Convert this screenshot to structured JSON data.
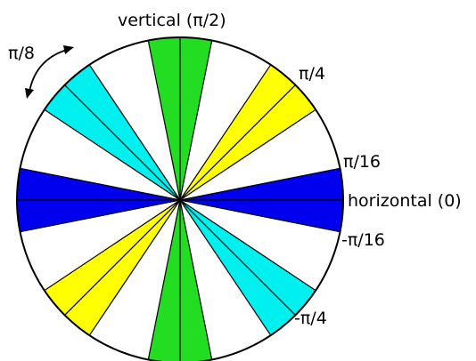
{
  "labels": {
    "vertical": "vertical (π/2)",
    "pi_over_4": "π/4",
    "pi_over_16": "π/16",
    "horizontal": "horizontal (0)",
    "neg_pi_over_16": "-π/16",
    "neg_pi_over_4": "-π/4",
    "pi_over_8": "π/8"
  },
  "bands": [
    {
      "name": "horizontal-band",
      "center_angle_rad": "0",
      "half_width_rad": "π/16",
      "color": "#0000ee"
    },
    {
      "name": "vertical-band",
      "center_angle_rad": "π/2",
      "half_width_rad": "π/16",
      "color": "#22dd22"
    },
    {
      "name": "diagonal-pi4-band",
      "center_angle_rad": "π/4",
      "half_width_rad": "π/16",
      "color": "#ffff00"
    },
    {
      "name": "diagonal-neg-pi4-band",
      "center_angle_rad": "-π/4",
      "half_width_rad": "π/16",
      "color": "#00f0f0"
    }
  ],
  "colors": {
    "outline": "#000000",
    "background": "#ffffff"
  }
}
